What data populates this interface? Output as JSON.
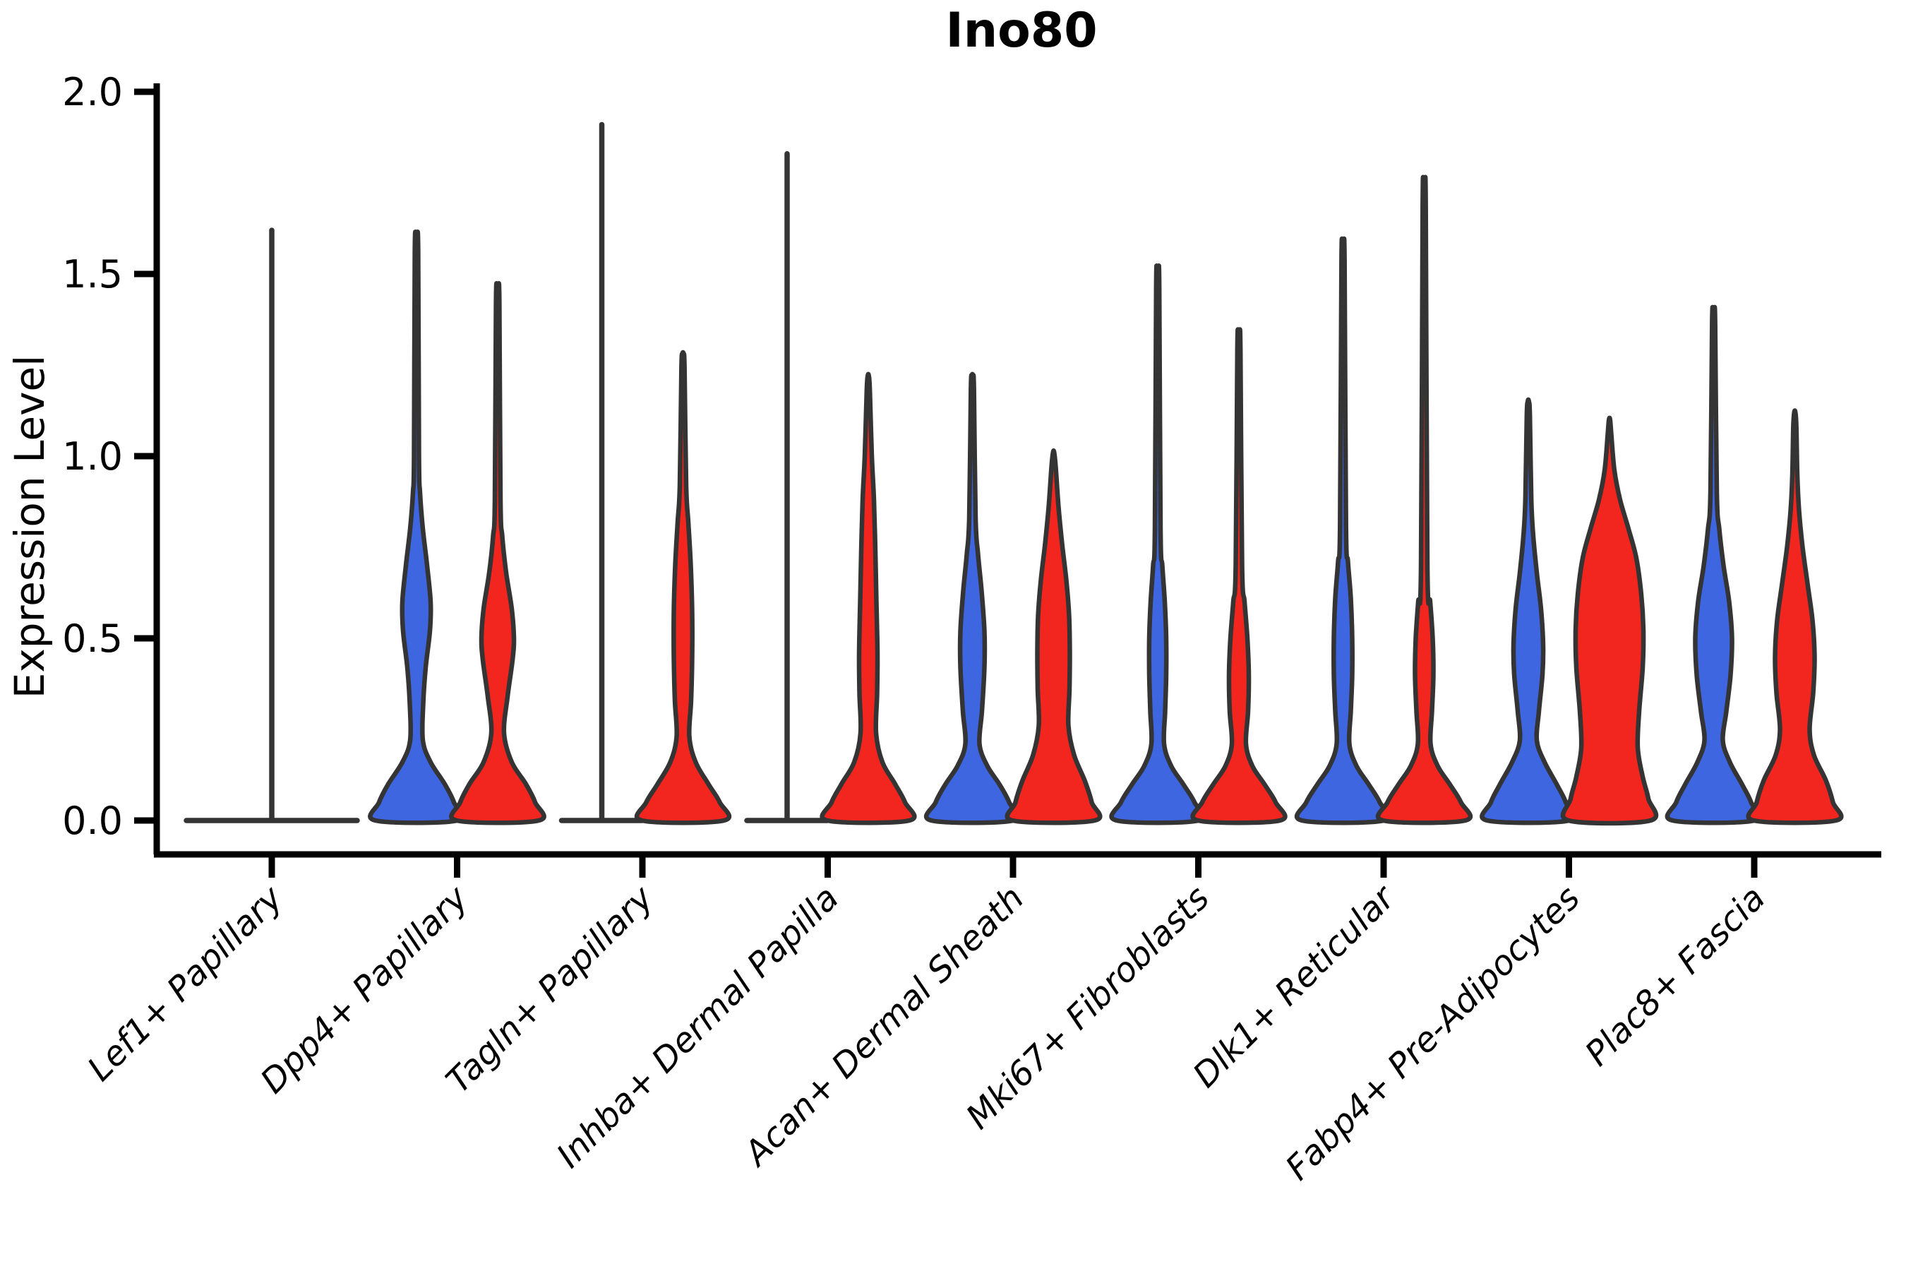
{
  "title": "Ino80",
  "ylabel": "Expression Level",
  "colors": {
    "blue_fill": "#3E66E0",
    "red_fill": "#F3261F",
    "violin_edge": "#343434",
    "axis": "#000000"
  },
  "chart_data": {
    "type": "violin",
    "title": "Ino80",
    "xlabel": "",
    "ylabel": "Expression Level",
    "ylim": [
      0.0,
      2.0
    ],
    "grid": false,
    "legend": "none",
    "ytick_labels": [
      "0.0",
      "0.5",
      "1.0",
      "1.5",
      "2.0"
    ],
    "ytick_values": [
      0.0,
      0.5,
      1.0,
      1.5,
      2.0
    ],
    "categories": [
      "Lef1+ Papillary",
      "Dpp4+ Papillary",
      "Tagln+ Papillary",
      "Inhba+ Dermal Papilla",
      "Acan+ Dermal Sheath",
      "Mki67+ Fibroblasts",
      "Dlk1+ Reticular",
      "Fabp4+ Pre-Adipocytes",
      "Plac8+ Fascia"
    ],
    "profile_note": "profile = [expression_value, half_width_px]; flat violins are zero-height distributions with a thin max spike",
    "series": [
      {
        "name": "blue",
        "color": "#3E66E0",
        "violins": [
          {
            "flat": true,
            "span": "full",
            "max": 1.62,
            "base_halfwidth": 121
          },
          {
            "max": 1.6,
            "profile": [
              [
                0,
                58
              ],
              [
                0.05,
                53
              ],
              [
                0.1,
                40
              ],
              [
                0.16,
                20
              ],
              [
                0.22,
                9
              ],
              [
                0.32,
                9.5
              ],
              [
                0.42,
                13
              ],
              [
                0.52,
                19
              ],
              [
                0.6,
                20
              ],
              [
                0.7,
                15
              ],
              [
                0.8,
                9
              ],
              [
                0.9,
                5
              ],
              [
                1.0,
                3.5
              ],
              [
                1.56,
                2.4
              ],
              [
                1.6,
                0.8
              ]
            ]
          },
          {
            "flat": true,
            "max": 1.91,
            "base_halfwidth": 57
          },
          {
            "flat": true,
            "max": 1.83,
            "base_halfwidth": 57
          },
          {
            "max": 1.22,
            "profile": [
              [
                0,
                58
              ],
              [
                0.05,
                52
              ],
              [
                0.1,
                38
              ],
              [
                0.15,
                21
              ],
              [
                0.21,
                10
              ],
              [
                0.3,
                13.5
              ],
              [
                0.42,
                17
              ],
              [
                0.52,
                17
              ],
              [
                0.63,
                13
              ],
              [
                0.73,
                8
              ],
              [
                0.83,
                4.5
              ],
              [
                1.18,
                2.2
              ],
              [
                1.22,
                0.8
              ]
            ]
          },
          {
            "max": 1.5,
            "profile": [
              [
                0,
                58
              ],
              [
                0.05,
                52
              ],
              [
                0.1,
                36
              ],
              [
                0.15,
                19
              ],
              [
                0.21,
                9
              ],
              [
                0.3,
                10.5
              ],
              [
                0.4,
                12
              ],
              [
                0.5,
                12
              ],
              [
                0.6,
                10
              ],
              [
                0.7,
                6.5
              ],
              [
                0.8,
                4
              ],
              [
                1.46,
                2.2
              ],
              [
                1.5,
                0.8
              ]
            ]
          },
          {
            "max": 1.57,
            "profile": [
              [
                0,
                58
              ],
              [
                0.05,
                52
              ],
              [
                0.1,
                36
              ],
              [
                0.15,
                19
              ],
              [
                0.21,
                9
              ],
              [
                0.3,
                11
              ],
              [
                0.4,
                13
              ],
              [
                0.5,
                13
              ],
              [
                0.61,
                11
              ],
              [
                0.71,
                7
              ],
              [
                0.81,
                4.2
              ],
              [
                1.53,
                2.2
              ],
              [
                1.57,
                0.8
              ]
            ]
          },
          {
            "max": 1.15,
            "profile": [
              [
                0,
                58
              ],
              [
                0.05,
                53
              ],
              [
                0.1,
                40
              ],
              [
                0.16,
                23
              ],
              [
                0.22,
                12
              ],
              [
                0.3,
                15
              ],
              [
                0.4,
                20
              ],
              [
                0.48,
                21
              ],
              [
                0.58,
                18
              ],
              [
                0.68,
                12
              ],
              [
                0.78,
                7
              ],
              [
                0.88,
                4.2
              ],
              [
                1.11,
                2.2
              ],
              [
                1.15,
                0.8
              ]
            ]
          },
          {
            "max": 1.4,
            "profile": [
              [
                0,
                58
              ],
              [
                0.05,
                53
              ],
              [
                0.1,
                40
              ],
              [
                0.16,
                23
              ],
              [
                0.22,
                13
              ],
              [
                0.3,
                18
              ],
              [
                0.4,
                24
              ],
              [
                0.5,
                26
              ],
              [
                0.6,
                22
              ],
              [
                0.7,
                14
              ],
              [
                0.8,
                8
              ],
              [
                0.9,
                4.5
              ],
              [
                1.36,
                2.2
              ],
              [
                1.4,
                0.8
              ]
            ]
          }
        ]
      },
      {
        "name": "red",
        "color": "#F3261F",
        "violins": [
          null,
          {
            "max": 1.46,
            "profile": [
              [
                0,
                58
              ],
              [
                0.05,
                53
              ],
              [
                0.1,
                40
              ],
              [
                0.16,
                20
              ],
              [
                0.24,
                9
              ],
              [
                0.34,
                14
              ],
              [
                0.44,
                21
              ],
              [
                0.5,
                23
              ],
              [
                0.58,
                20
              ],
              [
                0.68,
                12
              ],
              [
                0.78,
                6.5
              ],
              [
                0.88,
                4
              ],
              [
                1.42,
                2.4
              ],
              [
                1.46,
                0.8
              ]
            ]
          },
          {
            "max": 1.28,
            "profile": [
              [
                0,
                58
              ],
              [
                0.05,
                52
              ],
              [
                0.1,
                36
              ],
              [
                0.16,
                18
              ],
              [
                0.23,
                9
              ],
              [
                0.33,
                11.5
              ],
              [
                0.45,
                13
              ],
              [
                0.57,
                13
              ],
              [
                0.7,
                11
              ],
              [
                0.82,
                7.5
              ],
              [
                0.92,
                4.5
              ],
              [
                1.24,
                2.2
              ],
              [
                1.28,
                0.8
              ]
            ]
          },
          {
            "max": 1.22,
            "profile": [
              [
                0,
                58
              ],
              [
                0.05,
                52
              ],
              [
                0.1,
                38
              ],
              [
                0.16,
                20
              ],
              [
                0.24,
                11
              ],
              [
                0.35,
                12.5
              ],
              [
                0.46,
                13
              ],
              [
                0.6,
                11.5
              ],
              [
                0.74,
                10
              ],
              [
                0.88,
                8
              ],
              [
                1.0,
                5
              ],
              [
                1.18,
                2.2
              ],
              [
                1.22,
                0.8
              ]
            ]
          },
          {
            "max": 1.01,
            "profile": [
              [
                0,
                58
              ],
              [
                0.05,
                54
              ],
              [
                0.11,
                44
              ],
              [
                0.18,
                29
              ],
              [
                0.26,
                21
              ],
              [
                0.36,
                22.5
              ],
              [
                0.46,
                23
              ],
              [
                0.56,
                22
              ],
              [
                0.66,
                18
              ],
              [
                0.76,
                12
              ],
              [
                0.86,
                7
              ],
              [
                0.97,
                3
              ],
              [
                1.01,
                0.8
              ]
            ]
          },
          {
            "max": 1.33,
            "profile": [
              [
                0,
                58
              ],
              [
                0.05,
                52
              ],
              [
                0.1,
                36
              ],
              [
                0.15,
                19
              ],
              [
                0.21,
                10
              ],
              [
                0.3,
                13
              ],
              [
                0.4,
                14
              ],
              [
                0.5,
                12
              ],
              [
                0.6,
                8
              ],
              [
                0.7,
                4.5
              ],
              [
                1.29,
                2.2
              ],
              [
                1.33,
                0.8
              ]
            ]
          },
          {
            "max": 1.72,
            "profile": [
              [
                0,
                58
              ],
              [
                0.05,
                52
              ],
              [
                0.1,
                36
              ],
              [
                0.15,
                19
              ],
              [
                0.21,
                9
              ],
              [
                0.3,
                11
              ],
              [
                0.4,
                13
              ],
              [
                0.5,
                12
              ],
              [
                0.6,
                8.5
              ],
              [
                0.7,
                4.5
              ],
              [
                1.68,
                2.2
              ],
              [
                1.72,
                0.8
              ]
            ]
          },
          {
            "max": 1.1,
            "profile": [
              [
                0,
                58
              ],
              [
                0.06,
                55
              ],
              [
                0.12,
                47
              ],
              [
                0.2,
                40
              ],
              [
                0.3,
                42
              ],
              [
                0.42,
                47
              ],
              [
                0.52,
                48
              ],
              [
                0.62,
                45
              ],
              [
                0.72,
                38
              ],
              [
                0.8,
                27
              ],
              [
                0.88,
                15
              ],
              [
                0.96,
                7
              ],
              [
                1.06,
                2.5
              ],
              [
                1.1,
                0.8
              ]
            ]
          },
          {
            "max": 1.12,
            "profile": [
              [
                0,
                58
              ],
              [
                0.05,
                54
              ],
              [
                0.11,
                44
              ],
              [
                0.18,
                27
              ],
              [
                0.25,
                21
              ],
              [
                0.35,
                26
              ],
              [
                0.45,
                28
              ],
              [
                0.55,
                25
              ],
              [
                0.65,
                18
              ],
              [
                0.75,
                11
              ],
              [
                0.85,
                6
              ],
              [
                0.95,
                3.5
              ],
              [
                1.08,
                2.2
              ],
              [
                1.12,
                0.8
              ]
            ]
          }
        ]
      }
    ]
  }
}
